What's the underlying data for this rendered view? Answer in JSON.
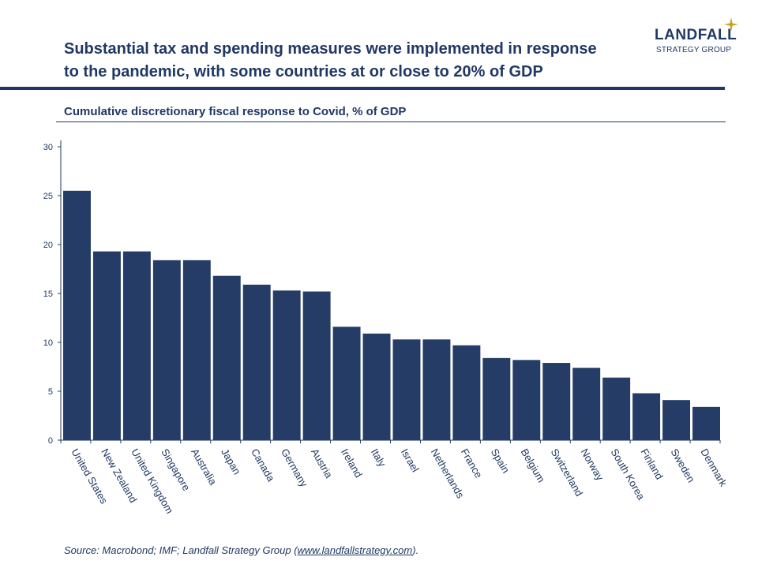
{
  "header": {
    "title_line1": "Substantial tax and spending measures were implemented in response",
    "title_line2": "to the pandemic, with some countries at or close to 20% of GDP",
    "subtitle": "Cumulative discretionary fiscal response to Covid, % of GDP"
  },
  "logo": {
    "name": "LANDFALL",
    "tagline": "STRATEGY GROUP",
    "star_icon": "four-point-star-icon",
    "star_color": "#c9a227"
  },
  "source": {
    "prefix": "Source: Macrobond; IMF; Landfall Strategy Group (",
    "link": "www.landfallstrategy.com",
    "suffix": ")."
  },
  "colors": {
    "bar": "#253d66",
    "text": "#1f3864"
  },
  "chart_data": {
    "type": "bar",
    "categories": [
      "United States",
      "New Zealand",
      "United Kingdom",
      "Singapore",
      "Australia",
      "Japan",
      "Canada",
      "Germany",
      "Austria",
      "Ireland",
      "Italy",
      "Israel",
      "Netherlands",
      "France",
      "Spain",
      "Belgium",
      "Switzerland",
      "Norway",
      "South Korea",
      "Finland",
      "Sweden",
      "Denmark"
    ],
    "values": [
      25.5,
      19.3,
      19.3,
      18.4,
      18.4,
      16.8,
      15.9,
      15.3,
      15.2,
      11.6,
      10.9,
      10.3,
      10.3,
      9.7,
      8.4,
      8.2,
      7.9,
      7.4,
      6.4,
      4.8,
      4.1,
      3.4
    ],
    "title": "Cumulative discretionary fiscal response to Covid, % of GDP",
    "xlabel": "",
    "ylabel": "",
    "ylim": [
      0,
      30
    ],
    "yticks": [
      0,
      5,
      10,
      15,
      20,
      25,
      30
    ],
    "grid": false
  }
}
